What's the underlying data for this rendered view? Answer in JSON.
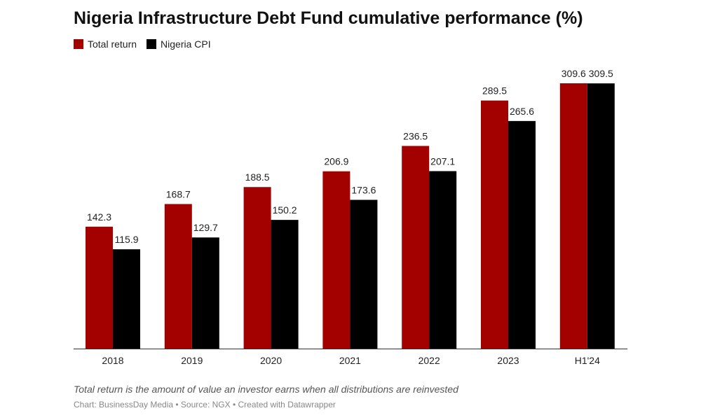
{
  "chart_data": {
    "type": "bar",
    "title": "Nigeria Infrastructure Debt Fund cumulative performance (%)",
    "categories": [
      "2018",
      "2019",
      "2020",
      "2021",
      "2022",
      "2023",
      "H1'24"
    ],
    "series": [
      {
        "name": "Total return",
        "color": "#a30000",
        "values": [
          142.3,
          168.7,
          188.5,
          206.9,
          236.5,
          289.5,
          309.6
        ]
      },
      {
        "name": "Nigeria CPI",
        "color": "#000000",
        "values": [
          115.9,
          129.7,
          150.2,
          173.6,
          207.1,
          265.6,
          309.5
        ]
      }
    ],
    "ylim": [
      0,
      309.6
    ],
    "grid": false,
    "legend": "top-left",
    "xlabel": "",
    "ylabel": ""
  },
  "note": "Total return is the amount of value an investor earns when all distributions are reinvested",
  "credit": "Chart: BusinessDay Media • Source: NGX • Created with Datawrapper"
}
